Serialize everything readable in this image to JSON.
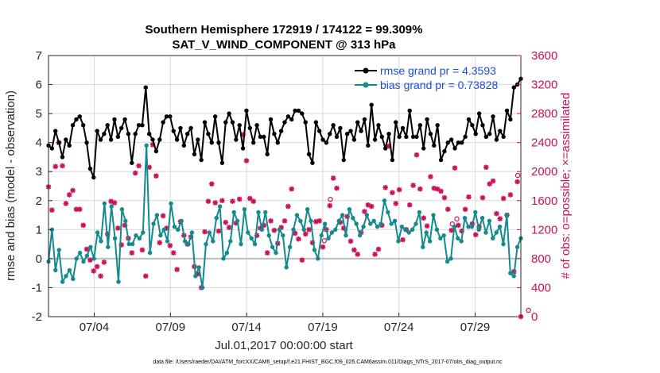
{
  "chart_data": {
    "type": "line",
    "title": "Southern Hemisphere 172919 / 174122 = 99.309%",
    "subtitle": "SAT_V_WIND_COMPONENT @ 313 hPa",
    "xlabel": "Jul.01,2017 00:00:00 start",
    "ylabel": "rmse and bias (model - observation)",
    "y2label": "# of obs: o=possible; ×=assimilated",
    "footer": "data file: /Users/raeder/DAI/ATM_forcXX/CAM6_setup/f.e21.FHIST_BGC.f09_025.CAM6assim.011/Diags_NTrS_2017-07/obs_diag_output.nc",
    "x_range_days": [
      1,
      32
    ],
    "x_ticks": [
      4,
      9,
      14,
      19,
      24,
      29
    ],
    "x_tick_labels": [
      "07/04",
      "07/09",
      "07/14",
      "07/19",
      "07/24",
      "07/29"
    ],
    "ylim": [
      -2,
      7
    ],
    "y_ticks": [
      -2,
      -1,
      0,
      1,
      2,
      3,
      4,
      5,
      6,
      7
    ],
    "y2lim": [
      0,
      3600
    ],
    "y2_ticks": [
      0,
      400,
      800,
      1200,
      1600,
      2000,
      2400,
      2800,
      3200,
      3600
    ],
    "zero_line": 0,
    "colors": {
      "rmse": "#000000",
      "bias": "#128a8e",
      "obs": "#cc1157",
      "legend_text": "#1b4fd8",
      "grid": "#d9d9d9"
    },
    "series": [
      {
        "name": "rmse",
        "legend": "rmse grand pr = 4.3593",
        "values": [
          3.9,
          3.8,
          4.4,
          4.0,
          3.5,
          4.1,
          3.9,
          4.6,
          4.8,
          4.9,
          4.6,
          4.0,
          3.1,
          2.8,
          4.4,
          4.1,
          4.3,
          4.6,
          4.1,
          4.8,
          4.2,
          4.5,
          4.8,
          4.3,
          3.3,
          4.3,
          4.6,
          4.6,
          5.9,
          4.3,
          4.1,
          3.7,
          4.1,
          4.7,
          4.9,
          4.9,
          4.4,
          4.1,
          4.5,
          3.9,
          4.3,
          4.5,
          3.6,
          4.1,
          3.4,
          4.7,
          4.3,
          4.0,
          4.9,
          4.0,
          3.3,
          4.7,
          5.0,
          4.7,
          4.1,
          4.6,
          3.8,
          5.1,
          4.5,
          4.0,
          4.6,
          4.2,
          4.2,
          3.6,
          4.8,
          4.3,
          4.0,
          4.4,
          4.7,
          4.9,
          4.8,
          5.1,
          5.1,
          5.0,
          4.7,
          3.6,
          3.3,
          4.7,
          4.4,
          4.1,
          4.0,
          4.3,
          4.6,
          4.2,
          4.5,
          3.4,
          4.3,
          4.4,
          4.1,
          4.7,
          4.4,
          4.8,
          3.9,
          5.3,
          4.1,
          4.6,
          4.2,
          3.8,
          4.3,
          3.4,
          4.7,
          4.2,
          4.5,
          4.2,
          5.1,
          4.2,
          4.2,
          4.6,
          3.8,
          4.8,
          4.3,
          3.9,
          4.6,
          3.4,
          3.7,
          4.0,
          4.1,
          3.8,
          4.0,
          4.0,
          4.2,
          4.8,
          4.6,
          4.3,
          5.0,
          4.6,
          4.2,
          4.3,
          4.9,
          4.1,
          4.4,
          4.2,
          5.1,
          4.8,
          5.9,
          6.0,
          6.2
        ]
      },
      {
        "name": "bias",
        "legend": "bias grand pr = 0.73828",
        "values": [
          -0.1,
          1.0,
          -0.4,
          0.3,
          -0.8,
          -0.6,
          -0.4,
          -0.7,
          0.0,
          0.2,
          -0.1,
          0.1,
          0.4,
          0.0,
          0.9,
          0.6,
          1.9,
          0.4,
          1.8,
          0.7,
          -0.8,
          1.7,
          1.3,
          0.5,
          0.5,
          0.8,
          0.7,
          0.9,
          3.9,
          0.2,
          1.2,
          1.5,
          0.8,
          1.0,
          0.6,
          1.9,
          1.1,
          1.0,
          1.3,
          0.6,
          0.5,
          0.9,
          -0.6,
          -0.3,
          -1.0,
          0.5,
          0.9,
          0.6,
          1.4,
          1.8,
          0.0,
          0.2,
          0.6,
          1.6,
          1.3,
          0.5,
          1.7,
          0.9,
          0.7,
          0.5,
          1.6,
          1.0,
          1.6,
          0.8,
          0.4,
          0.2,
          1.0,
          0.8,
          -0.3,
          0.4,
          1.0,
          1.5,
          1.3,
          1.0,
          1.7,
          1.3,
          0.3,
          0.0,
          0.8,
          1.2,
          0.7,
          0.9,
          1.0,
          1.3,
          1.5,
          0.8,
          1.7,
          1.4,
          1.2,
          0.8,
          1.1,
          1.5,
          1.2,
          1.3,
          1.1,
          1.2,
          2.0,
          1.6,
          1.2,
          1.3,
          0.6,
          1.1,
          1.0,
          0.9,
          1.0,
          1.2,
          1.6,
          0.4,
          0.9,
          0.6,
          1.5,
          1.0,
          0.7,
          0.8,
          -0.1,
          0.0,
          1.1,
          0.7,
          0.6,
          1.4,
          1.1,
          1.1,
          1.6,
          1.0,
          1.4,
          0.9,
          1.3,
          0.7,
          0.9,
          1.1,
          0.5,
          1.5,
          -0.5,
          -0.6,
          0.4,
          0.7
        ]
      }
    ],
    "obs_assimilated": [
      1790,
      1470,
      2070,
      2400,
      2080,
      1560,
      1680,
      1740,
      1480,
      1480,
      1260,
      930,
      780,
      630,
      690,
      560,
      750,
      1140,
      1590,
      1570,
      1220,
      990,
      1260,
      1080,
      880,
      1980,
      2080,
      920,
      560,
      2060,
      2370,
      1940,
      1020,
      1390,
      1220,
      980,
      880,
      650,
      1310,
      1120,
      1000,
      1100,
      690,
      590,
      400,
      1170,
      1590,
      1830,
      1570,
      1180,
      1600,
      1300,
      1230,
      1590,
      1290,
      1620,
      2510,
      2150,
      1630,
      1590,
      1120,
      1220,
      1260,
      880,
      1320,
      1190,
      1010,
      1230,
      1320,
      1520,
      1760,
      1150,
      1070,
      780,
      1140,
      1200,
      1020,
      1310,
      1320,
      960,
      1200,
      1530,
      1910,
      1770,
      1300,
      1220,
      1380,
      1040,
      920,
      860,
      1160,
      1450,
      1540,
      1520,
      860,
      930,
      1260,
      1780,
      2350,
      1710,
      1560,
      1750,
      1060,
      1200,
      1540,
      1810,
      2230,
      1760,
      1360,
      1250,
      1930,
      1770,
      1760,
      1730,
      1640,
      1480,
      1190,
      2050,
      1260,
      1180,
      1480,
      1650,
      1280,
      1130,
      1240,
      1640,
      2060,
      1830,
      1870,
      1420,
      1350,
      1630,
      1400,
      1680,
      620,
      1860,
      0
    ],
    "obs_possible_only_days": [
      19.1,
      19.5,
      27.5,
      27.8,
      31.8,
      32.5
    ]
  }
}
